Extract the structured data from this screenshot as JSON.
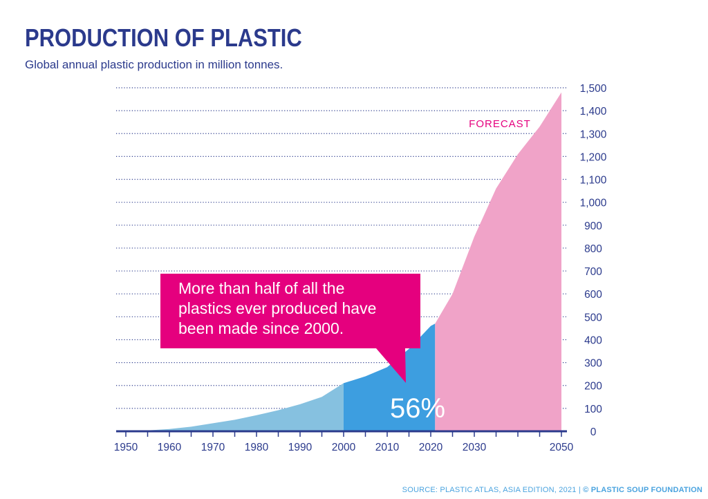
{
  "title": "PRODUCTION OF PLASTIC",
  "subtitle": "Global annual plastic production in million tonnes.",
  "forecast_label": "FORECAST",
  "callout_lines": [
    "More than half of all the",
    "plastics ever produced have",
    "been made since 2000."
  ],
  "share_label": "56%",
  "source_text": "SOURCE: PLASTIC ATLAS, ASIA EDITION, 2021",
  "source_sep": "|",
  "source_org": "© PLASTIC SOUP FOUNDATION",
  "colors": {
    "title": "#2b3a8c",
    "area_before_2000": "#86c1e0",
    "area_2000_2021": "#3d9ee0",
    "area_forecast": "#f0a3c8",
    "callout": "#e5007e",
    "forecast_text": "#e5007e",
    "source": "#4aa3df"
  },
  "chart_data": {
    "type": "area",
    "title": "PRODUCTION OF PLASTIC",
    "subtitle": "Global annual plastic production in million tonnes.",
    "xlim": [
      1950,
      2050
    ],
    "ylim": [
      0,
      1500
    ],
    "x_ticks": [
      "1950",
      "1960",
      "1970",
      "1980",
      "1990",
      "2000",
      "2010",
      "2020",
      "2030",
      "2050"
    ],
    "y_ticks": [
      "0",
      "100",
      "200",
      "300",
      "400",
      "500",
      "600",
      "700",
      "800",
      "900",
      "1,000",
      "1,100",
      "1,200",
      "1,300",
      "1,400",
      "1,500"
    ],
    "grid": "horizontal dotted",
    "x": [
      1950,
      1955,
      1960,
      1965,
      1970,
      1975,
      1980,
      1985,
      1990,
      1995,
      2000,
      2005,
      2010,
      2015,
      2020,
      2021,
      2025,
      2030,
      2035,
      2040,
      2045,
      2050
    ],
    "values": [
      2,
      4,
      10,
      20,
      35,
      50,
      70,
      92,
      118,
      150,
      210,
      240,
      280,
      360,
      460,
      470,
      600,
      850,
      1060,
      1210,
      1330,
      1480
    ],
    "segments": [
      {
        "from": 1950,
        "to": 2000
      },
      {
        "from": 2000,
        "to": 2021,
        "label": "56%"
      },
      {
        "from": 2021,
        "to": 2050,
        "label": "FORECAST"
      }
    ],
    "annotation": "More than half of all the plastics ever produced have been made since 2000."
  }
}
